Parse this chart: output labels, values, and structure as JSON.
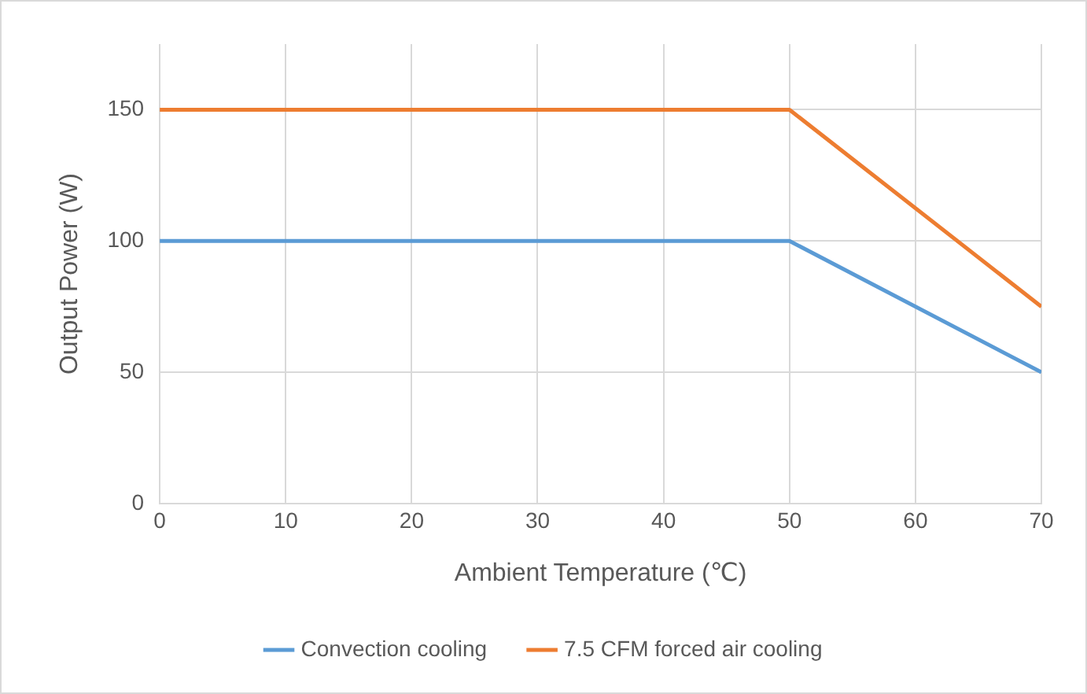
{
  "chart_data": {
    "type": "line",
    "xlabel": "Ambient Temperature (℃)",
    "ylabel": "Output Power (W)",
    "x": [
      0,
      50,
      70
    ],
    "series": [
      {
        "name": "Convection cooling",
        "color": "#5b9bd5",
        "values": [
          100,
          100,
          50
        ]
      },
      {
        "name": "7.5 CFM forced air cooling",
        "color": "#ed7d31",
        "values": [
          150,
          150,
          75
        ]
      }
    ],
    "xlim": [
      0,
      70
    ],
    "xticks": [
      0,
      10,
      20,
      30,
      40,
      50,
      60,
      70
    ],
    "ylim": [
      0,
      175
    ],
    "yticks": [
      0,
      50,
      100,
      150
    ],
    "grid": true,
    "legend": "bottom",
    "marker": "none",
    "line_style": "solid"
  }
}
